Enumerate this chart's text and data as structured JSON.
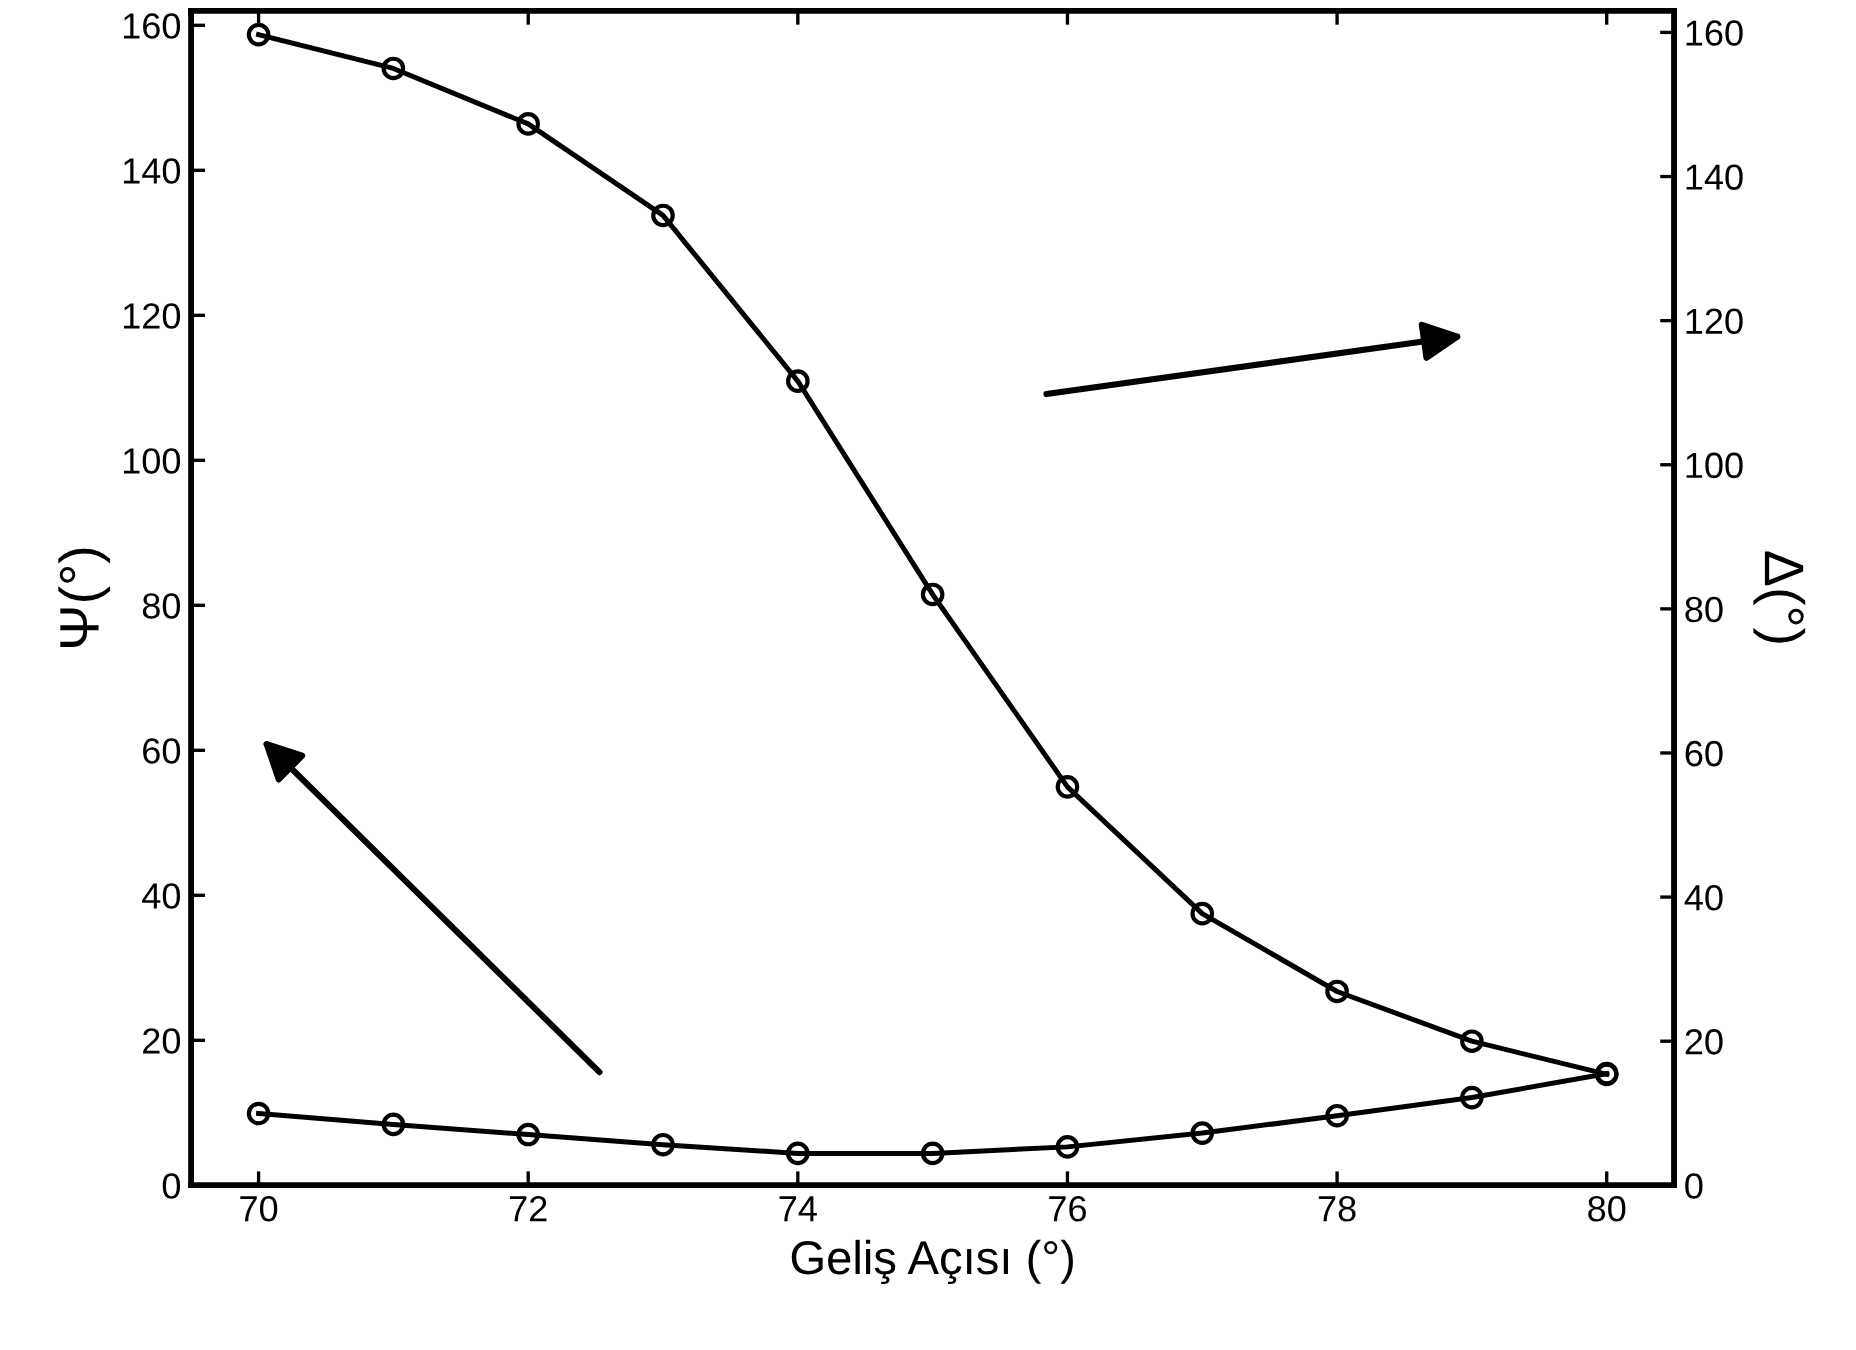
{
  "chart_data": {
    "type": "line",
    "xlabel": "Geliş Açısı (°)",
    "ylabel": "Ψ(°)",
    "y2label": "Δ(°)",
    "x": [
      70,
      71,
      72,
      73,
      74,
      75,
      76,
      77,
      78,
      79,
      80
    ],
    "series": [
      {
        "color": "#000000",
        "values": [
          9.9,
          8.4,
          7.0,
          5.6,
          4.4,
          4.4,
          5.3,
          7.2,
          9.6,
          12.1,
          15.4
        ]
      },
      {
        "color": "#000000",
        "axis": "y2",
        "values": [
          159.7,
          155.0,
          147.3,
          134.6,
          111.6,
          82.0,
          55.3,
          37.7,
          26.9,
          20.0,
          15.4
        ]
      }
    ],
    "xlim": [
      69.5,
      80.5
    ],
    "xticks": [
      70,
      72,
      74,
      76,
      78,
      80
    ],
    "ylim": [
      0,
      162
    ],
    "yticks": [
      0,
      20,
      40,
      60,
      80,
      100,
      120,
      140,
      160
    ],
    "y2lim": [
      0,
      163
    ],
    "y2ticks": [
      0,
      20,
      40,
      60,
      80,
      100,
      120,
      140,
      160
    ],
    "marker": "circle",
    "line_style": "solid",
    "grid": false
  }
}
